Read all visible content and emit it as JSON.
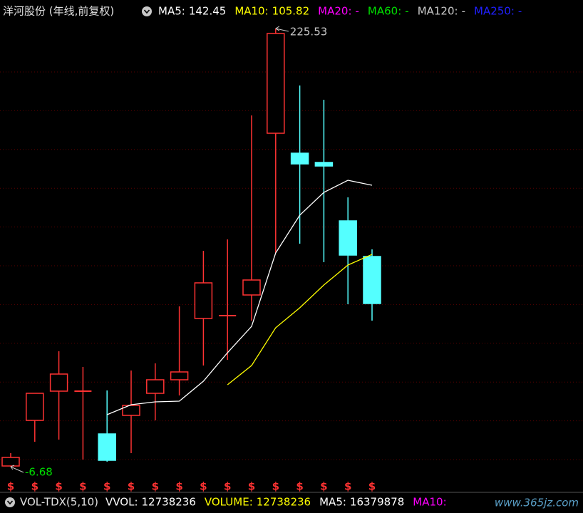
{
  "chart_data": {
    "type": "candlestick",
    "title": "洋河股份 (年线,前复权)",
    "categories": [
      null,
      null,
      null,
      null,
      null,
      null,
      null,
      null,
      null,
      null,
      null,
      null,
      null,
      null,
      null,
      null
    ],
    "open": [
      -6.3,
      17.86,
      33.35,
      33.35,
      10.69,
      20.51,
      32.21,
      39.39,
      71.86,
      73.37,
      84.32,
      170.03,
      159.45,
      154.55,
      123.59,
      104.71
    ],
    "close": [
      -1.77,
      32.21,
      42.41,
      33.35,
      -3.28,
      25.79,
      39.39,
      43.54,
      90.74,
      73.37,
      92.25,
      222.89,
      153.79,
      152.66,
      105.46,
      79.79
    ],
    "high": [
      0.5,
      32.21,
      54.49,
      46.18,
      33.72,
      44.29,
      48.07,
      78.28,
      107.73,
      113.77,
      179.47,
      225.53,
      195.32,
      187.77,
      136.05,
      108.48
    ],
    "low": [
      -6.68,
      6.54,
      7.67,
      -2.9,
      -4.03,
      0.5,
      17.86,
      31.08,
      46.94,
      49.96,
      70.73,
      106.6,
      111.5,
      101.69,
      79.41,
      70.73
    ],
    "up_color": "#ff3232",
    "down_color": "#54ffff",
    "ylim": [
      -12.34,
      229.31
    ],
    "max_label": 225.53,
    "min_label": -6.68,
    "series": [
      {
        "name": "MA5:",
        "color": "#ffffff",
        "readout": 142.45,
        "values": [
          null,
          null,
          null,
          null,
          20.89,
          26.17,
          27.68,
          28.06,
          38.63,
          53.73,
          67.7,
          106.6,
          126.61,
          138.69,
          145.11,
          142.45
        ]
      },
      {
        "name": "MA10:",
        "color": "#ffff00",
        "readout": 105.82,
        "values": [
          null,
          null,
          null,
          null,
          null,
          null,
          null,
          null,
          null,
          36.74,
          46.94,
          66.95,
          77.52,
          89.6,
          100.18,
          105.82
        ]
      },
      {
        "name": "MA20:",
        "color": "#ff00ff",
        "readout": "-",
        "values": [
          null,
          null,
          null,
          null,
          null,
          null,
          null,
          null,
          null,
          null,
          null,
          null,
          null,
          null,
          null,
          null
        ]
      },
      {
        "name": "MA60:",
        "color": "#00e000",
        "readout": "-",
        "values": [
          null,
          null,
          null,
          null,
          null,
          null,
          null,
          null,
          null,
          null,
          null,
          null,
          null,
          null,
          null,
          null
        ]
      },
      {
        "name": "MA120:",
        "color": "#c8c8c8",
        "readout": "-",
        "values": [
          null,
          null,
          null,
          null,
          null,
          null,
          null,
          null,
          null,
          null,
          null,
          null,
          null,
          null,
          null,
          null
        ]
      },
      {
        "name": "MA250:",
        "color": "#2020ff",
        "readout": "-",
        "values": [
          null,
          null,
          null,
          null,
          null,
          null,
          null,
          null,
          null,
          null,
          null,
          null,
          null,
          null,
          null,
          null
        ]
      }
    ],
    "signal": "$",
    "signal_color": "#ff3232",
    "volume_bar": {
      "indicator": "VOL-TDX(5,10)",
      "items": [
        {
          "label": "VVOL:",
          "value": 12738236,
          "color": "#ffffff"
        },
        {
          "label": "VOLUME:",
          "value": 12738236,
          "color": "#ffff00"
        },
        {
          "label": "MA5:",
          "value": 16379878,
          "color": "#ffffff"
        },
        {
          "label": "MA10:",
          "color": "#ff00ff"
        }
      ]
    },
    "watermark": "www.365jz.com"
  }
}
